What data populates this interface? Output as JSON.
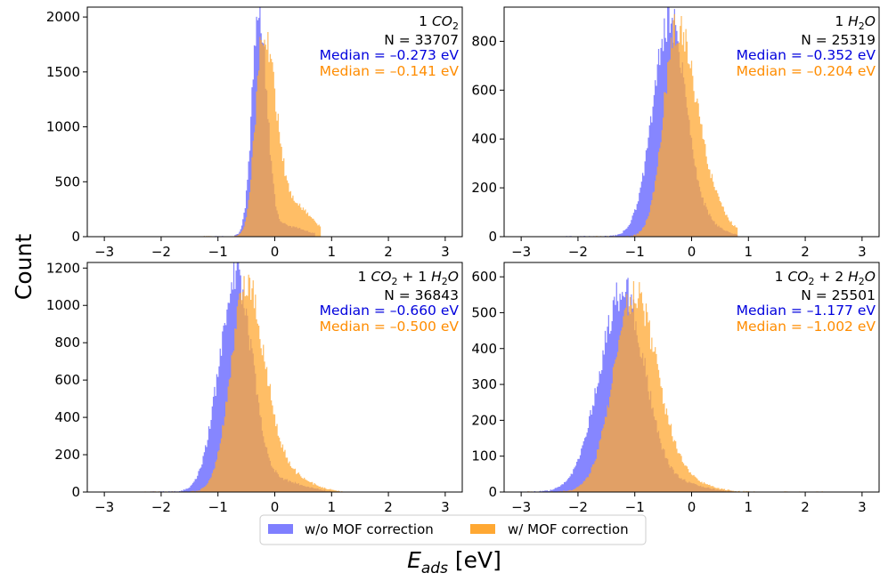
{
  "figure": {
    "ylabel": "Count",
    "xlabel_main": "E",
    "xlabel_sub": "ads",
    "xlabel_unit": " [eV]",
    "colors": {
      "without": "#7f7fff",
      "with": "#ffa833",
      "overlap": "#d67f47",
      "median_without": "#0000dd",
      "median_with": "#ff8c00"
    },
    "legend": {
      "placement": "bottom-center",
      "items": [
        "w/o MOF correction",
        "w/ MOF correction"
      ]
    }
  },
  "chart_data": [
    {
      "type": "histogram",
      "label_parts": [
        {
          "t": "1 "
        },
        {
          "t": "CO",
          "i": true
        },
        {
          "t": "2",
          "sub": true
        }
      ],
      "n_text": "N = 33707",
      "median_without_text": "Median = –0.273 eV",
      "median_with_text": "Median = –0.141 eV",
      "xlim": [
        -3.3,
        3.3
      ],
      "ylim": [
        0,
        2090
      ],
      "xticks": [
        -3,
        -2,
        -1,
        0,
        1,
        2,
        3
      ],
      "xtick_labels": [
        "−3",
        "−2",
        "−1",
        "0",
        "1",
        "2",
        "3"
      ],
      "yticks": [
        0,
        500,
        1000,
        1500,
        2000
      ],
      "ytick_labels": [
        "0",
        "500",
        "1000",
        "1500",
        "2000"
      ],
      "series": [
        {
          "key": "without",
          "mu": -0.28,
          "s_left": 0.12,
          "s_right": 0.14,
          "peak": 2000,
          "tail_amp": 0.05,
          "tail_mu": 0.15,
          "tail_s": 0.35,
          "lo": -1.4,
          "hi": 0.7
        },
        {
          "key": "with",
          "mu": -0.2,
          "s_left": 0.14,
          "s_right": 0.22,
          "peak": 1830,
          "tail_amp": 0.14,
          "tail_mu": 0.4,
          "tail_s": 0.28,
          "lo": -1.3,
          "hi": 0.8
        }
      ]
    },
    {
      "type": "histogram",
      "label_parts": [
        {
          "t": "1 "
        },
        {
          "t": "H",
          "i": true
        },
        {
          "t": "2",
          "sub": true
        },
        {
          "t": "O",
          "i": true
        }
      ],
      "n_text": "N = 25319",
      "median_without_text": "Median = –0.352 eV",
      "median_with_text": "Median = –0.204 eV",
      "xlim": [
        -3.3,
        3.3
      ],
      "ylim": [
        0,
        940
      ],
      "xticks": [
        -3,
        -2,
        -1,
        0,
        1,
        2,
        3
      ],
      "xtick_labels": [
        "−3",
        "−2",
        "−1",
        "0",
        "1",
        "2",
        "3"
      ],
      "yticks": [
        0,
        200,
        400,
        600,
        800
      ],
      "ytick_labels": [
        "0",
        "200",
        "400",
        "600",
        "800"
      ],
      "series": [
        {
          "key": "without",
          "mu": -0.38,
          "s_left": 0.3,
          "s_right": 0.28,
          "peak": 880,
          "tail_amp": 0.06,
          "tail_mu": 0.2,
          "tail_s": 0.3,
          "lo": -2.2,
          "hi": 0.8
        },
        {
          "key": "with",
          "mu": -0.25,
          "s_left": 0.24,
          "s_right": 0.34,
          "peak": 860,
          "tail_amp": 0.08,
          "tail_mu": 0.45,
          "tail_s": 0.25,
          "lo": -1.9,
          "hi": 0.8
        }
      ]
    },
    {
      "type": "histogram",
      "label_parts": [
        {
          "t": "1 "
        },
        {
          "t": "CO",
          "i": true
        },
        {
          "t": "2",
          "sub": true
        },
        {
          "t": " + 1 "
        },
        {
          "t": "H",
          "i": true
        },
        {
          "t": "2",
          "sub": true
        },
        {
          "t": "O",
          "i": true
        }
      ],
      "n_text": "N = 36843",
      "median_without_text": "Median = –0.660 eV",
      "median_with_text": "Median = –0.500 eV",
      "xlim": [
        -3.3,
        3.3
      ],
      "ylim": [
        0,
        1230
      ],
      "xticks": [
        -3,
        -2,
        -1,
        0,
        1,
        2,
        3
      ],
      "xtick_labels": [
        "−3",
        "−2",
        "−1",
        "0",
        "1",
        "2",
        "3"
      ],
      "yticks": [
        0,
        200,
        400,
        600,
        800,
        1000,
        1200
      ],
      "ytick_labels": [
        "0",
        "200",
        "400",
        "600",
        "800",
        "1000",
        "1200"
      ],
      "series": [
        {
          "key": "without",
          "mu": -0.68,
          "s_left": 0.3,
          "s_right": 0.28,
          "peak": 1160,
          "tail_amp": 0.05,
          "tail_mu": 0.1,
          "tail_s": 0.4,
          "lo": -2.5,
          "hi": 1.0
        },
        {
          "key": "with",
          "mu": -0.5,
          "s_left": 0.27,
          "s_right": 0.33,
          "peak": 1110,
          "tail_amp": 0.07,
          "tail_mu": 0.3,
          "tail_s": 0.35,
          "lo": -2.3,
          "hi": 1.2
        }
      ]
    },
    {
      "type": "histogram",
      "label_parts": [
        {
          "t": "1 "
        },
        {
          "t": "CO",
          "i": true
        },
        {
          "t": "2",
          "sub": true
        },
        {
          "t": " + 2 "
        },
        {
          "t": "H",
          "i": true
        },
        {
          "t": "2",
          "sub": true
        },
        {
          "t": "O",
          "i": true
        }
      ],
      "n_text": "N = 25501",
      "median_without_text": "Median = –1.177 eV",
      "median_with_text": "Median = –1.002 eV",
      "xlim": [
        -3.3,
        3.3
      ],
      "ylim": [
        0,
        640
      ],
      "xticks": [
        -3,
        -2,
        -1,
        0,
        1,
        2,
        3
      ],
      "xtick_labels": [
        "−3",
        "−2",
        "−1",
        "0",
        "1",
        "2",
        "3"
      ],
      "yticks": [
        0,
        100,
        200,
        300,
        400,
        500,
        600
      ],
      "ytick_labels": [
        "0",
        "100",
        "200",
        "300",
        "400",
        "500",
        "600"
      ],
      "series": [
        {
          "key": "without",
          "mu": -1.2,
          "s_left": 0.42,
          "s_right": 0.38,
          "peak": 560,
          "tail_amp": 0.04,
          "tail_mu": -0.2,
          "tail_s": 0.4,
          "lo": -3.1,
          "hi": 0.8
        },
        {
          "key": "with",
          "mu": -1.0,
          "s_left": 0.37,
          "s_right": 0.4,
          "peak": 545,
          "tail_amp": 0.05,
          "tail_mu": -0.1,
          "tail_s": 0.4,
          "lo": -2.9,
          "hi": 2.3
        }
      ]
    }
  ]
}
